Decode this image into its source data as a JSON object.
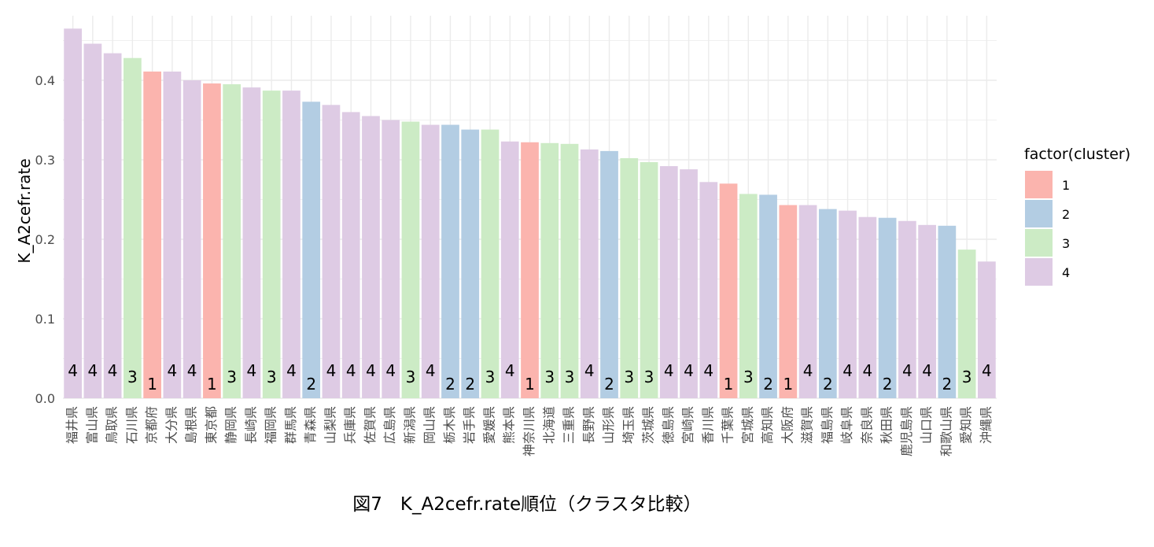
{
  "chart_data": {
    "type": "bar",
    "xlabel": "",
    "ylabel": "K_A2cefr.rate",
    "caption": "図7　K_A2cefr.rate順位（クラスタ比較）",
    "ylim": [
      0,
      0.465
    ],
    "yticks": [
      "0.0",
      "0.1",
      "0.2",
      "0.3",
      "0.4"
    ],
    "grid": true,
    "legend": {
      "title": "factor(cluster)",
      "position": "right",
      "entries": [
        "1",
        "2",
        "3",
        "4"
      ]
    },
    "cluster_colors": {
      "1": "#FBB4AE",
      "2": "#B3CDE3",
      "3": "#CCEBC5",
      "4": "#DECBE4"
    },
    "categories": [
      "福井県",
      "富山県",
      "鳥取県",
      "石川県",
      "京都府",
      "大分県",
      "島根県",
      "東京都",
      "静岡県",
      "長崎県",
      "福岡県",
      "群馬県",
      "青森県",
      "山梨県",
      "兵庫県",
      "佐賀県",
      "広島県",
      "新潟県",
      "岡山県",
      "栃木県",
      "岩手県",
      "愛媛県",
      "熊本県",
      "神奈川県",
      "北海道",
      "三重県",
      "長野県",
      "山形県",
      "埼玉県",
      "茨城県",
      "徳島県",
      "宮崎県",
      "香川県",
      "千葉県",
      "宮城県",
      "高知県",
      "大阪府",
      "滋賀県",
      "福島県",
      "岐阜県",
      "奈良県",
      "秋田県",
      "鹿児島県",
      "山口県",
      "和歌山県",
      "愛知県",
      "沖縄県"
    ],
    "values": [
      0.465,
      0.446,
      0.434,
      0.428,
      0.411,
      0.411,
      0.4,
      0.396,
      0.395,
      0.391,
      0.387,
      0.387,
      0.373,
      0.369,
      0.36,
      0.355,
      0.35,
      0.348,
      0.344,
      0.344,
      0.338,
      0.338,
      0.323,
      0.322,
      0.321,
      0.32,
      0.313,
      0.311,
      0.302,
      0.297,
      0.292,
      0.288,
      0.272,
      0.27,
      0.257,
      0.256,
      0.243,
      0.243,
      0.238,
      0.236,
      0.228,
      0.227,
      0.223,
      0.218,
      0.217,
      0.187,
      0.172
    ],
    "clusters": [
      "4",
      "4",
      "4",
      "3",
      "1",
      "4",
      "4",
      "1",
      "3",
      "4",
      "3",
      "4",
      "2",
      "4",
      "4",
      "4",
      "4",
      "3",
      "4",
      "2",
      "2",
      "3",
      "4",
      "1",
      "3",
      "3",
      "4",
      "2",
      "3",
      "3",
      "4",
      "4",
      "4",
      "1",
      "3",
      "2",
      "1",
      "4",
      "2",
      "4",
      "4",
      "2",
      "4",
      "4",
      "2",
      "3",
      "4"
    ]
  }
}
